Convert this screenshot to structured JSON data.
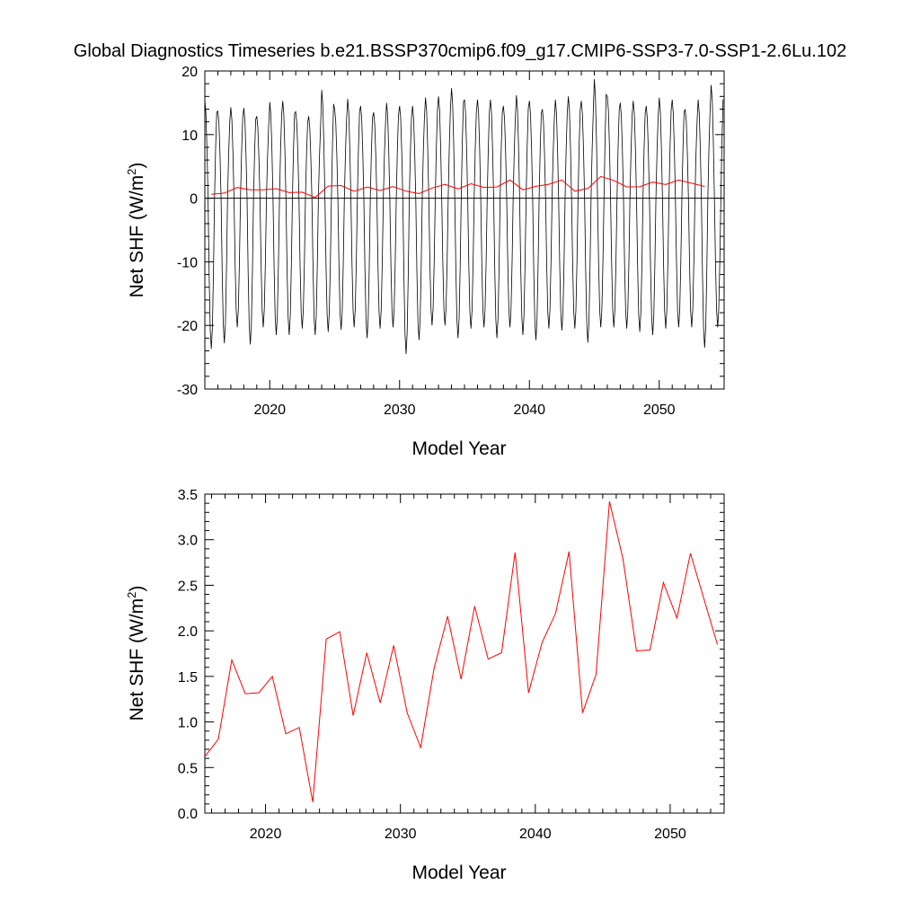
{
  "title": "Global Diagnostics Timeseries b.e21.BSSP370cmip6.f09_g17.CMIP6-SSP3-7.0-SSP1-2.6Lu.102",
  "colors": {
    "monthly": "#000000",
    "annual": "#ff0000",
    "zero_line": "#000000"
  },
  "chart_data": [
    {
      "type": "line",
      "xlabel": "Model Year",
      "ylabel": "Net SHF (W/m",
      "ylabel_sup": "2",
      "ylabel_close": ")",
      "xlim": [
        2015.0,
        2055.0
      ],
      "ylim": [
        -30,
        20
      ],
      "x_ticks": [
        2020,
        2030,
        2040,
        2050
      ],
      "x_tick_labels": [
        "2020",
        "2030",
        "2040",
        "2050"
      ],
      "y_ticks": [
        -30,
        -20,
        -10,
        0,
        10,
        20
      ],
      "y_tick_labels": [
        "-30",
        "-20",
        "-10",
        "0",
        "10",
        "20"
      ],
      "zero_line": true,
      "series": [
        {
          "id": "monthly",
          "kind": "seasonal-cycle",
          "start_year": 2015,
          "end_year": 2055,
          "annual_max": [
            15.5,
            13.7,
            14.3,
            14.2,
            12.9,
            15.1,
            15.3,
            13.6,
            12.9,
            17.0,
            14.0,
            15.6,
            14.5,
            13.5,
            15.0,
            14.5,
            14.5,
            15.8,
            16.0,
            17.3,
            15.5,
            15.5,
            15.5,
            14.5,
            16.2,
            15.3,
            14.0,
            15.5,
            16.0,
            15.3,
            18.7,
            16.0,
            15.0,
            15.3,
            14.5,
            15.8,
            15.5,
            14.0,
            15.5,
            17.8
          ],
          "annual_min": [
            -23.7,
            -22.8,
            -20.3,
            -23.0,
            -20.3,
            -21.5,
            -21.5,
            -20.5,
            -21.5,
            -21.0,
            -20.7,
            -20.3,
            -22.0,
            -20.5,
            -20.3,
            -24.5,
            -22.3,
            -20.0,
            -20.0,
            -22.0,
            -20.5,
            -20.3,
            -22.0,
            -20.3,
            -21.5,
            -22.3,
            -20.5,
            -20.8,
            -20.5,
            -22.7,
            -20.3,
            -20.3,
            -20.5,
            -21.0,
            -21.5,
            -20.5,
            -20.3,
            -20.3,
            -23.5,
            -20.3
          ]
        },
        {
          "id": "annual",
          "kind": "annual-mean",
          "x": [
            2015.5,
            2016.5,
            2017.5,
            2018.5,
            2019.5,
            2020.5,
            2021.5,
            2022.5,
            2023.5,
            2024.5,
            2025.5,
            2026.5,
            2027.5,
            2028.5,
            2029.5,
            2030.5,
            2031.5,
            2032.5,
            2033.5,
            2034.5,
            2035.5,
            2036.5,
            2037.5,
            2038.5,
            2039.5,
            2040.5,
            2041.5,
            2042.5,
            2043.5,
            2044.5,
            2045.5,
            2046.5,
            2047.5,
            2048.5,
            2049.5,
            2050.5,
            2051.5,
            2052.5,
            2053.5
          ],
          "values": [
            0.62,
            0.81,
            1.68,
            1.31,
            1.32,
            1.5,
            0.87,
            0.94,
            0.12,
            1.91,
            1.99,
            1.07,
            1.76,
            1.21,
            1.84,
            1.1,
            0.72,
            1.59,
            2.16,
            1.47,
            2.27,
            1.69,
            1.76,
            2.86,
            1.32,
            1.87,
            2.19,
            2.87,
            1.1,
            1.52,
            3.42,
            2.79,
            1.78,
            1.79,
            2.53,
            2.14,
            2.85,
            2.35,
            1.85
          ]
        }
      ]
    },
    {
      "type": "line",
      "xlabel": "Model Year",
      "ylabel": "Net SHF (W/m",
      "ylabel_sup": "2",
      "ylabel_close": ")",
      "xlim": [
        2015.5,
        2054.0
      ],
      "ylim": [
        0,
        3.5
      ],
      "x_ticks": [
        2020,
        2030,
        2040,
        2050
      ],
      "x_tick_labels": [
        "2020",
        "2030",
        "2040",
        "2050"
      ],
      "y_ticks": [
        0,
        0.5,
        1.0,
        1.5,
        2.0,
        2.5,
        3.0,
        3.5
      ],
      "y_tick_labels": [
        "0.0",
        "0.5",
        "1.0",
        "1.5",
        "2.0",
        "2.5",
        "3.0",
        "3.5"
      ],
      "series": [
        {
          "id": "annual",
          "x": [
            2015.5,
            2016.5,
            2017.5,
            2018.5,
            2019.5,
            2020.5,
            2021.5,
            2022.5,
            2023.5,
            2024.5,
            2025.5,
            2026.5,
            2027.5,
            2028.5,
            2029.5,
            2030.5,
            2031.5,
            2032.5,
            2033.5,
            2034.5,
            2035.5,
            2036.5,
            2037.5,
            2038.5,
            2039.5,
            2040.5,
            2041.5,
            2042.5,
            2043.5,
            2044.5,
            2045.5,
            2046.5,
            2047.5,
            2048.5,
            2049.5,
            2050.5,
            2051.5,
            2052.5,
            2053.5
          ],
          "values": [
            0.62,
            0.81,
            1.68,
            1.31,
            1.32,
            1.5,
            0.87,
            0.94,
            0.12,
            1.91,
            1.99,
            1.07,
            1.76,
            1.21,
            1.84,
            1.1,
            0.72,
            1.59,
            2.16,
            1.47,
            2.27,
            1.69,
            1.76,
            2.86,
            1.32,
            1.87,
            2.19,
            2.87,
            1.1,
            1.52,
            3.42,
            2.79,
            1.78,
            1.79,
            2.53,
            2.14,
            2.85,
            2.35,
            1.85
          ]
        }
      ]
    }
  ]
}
